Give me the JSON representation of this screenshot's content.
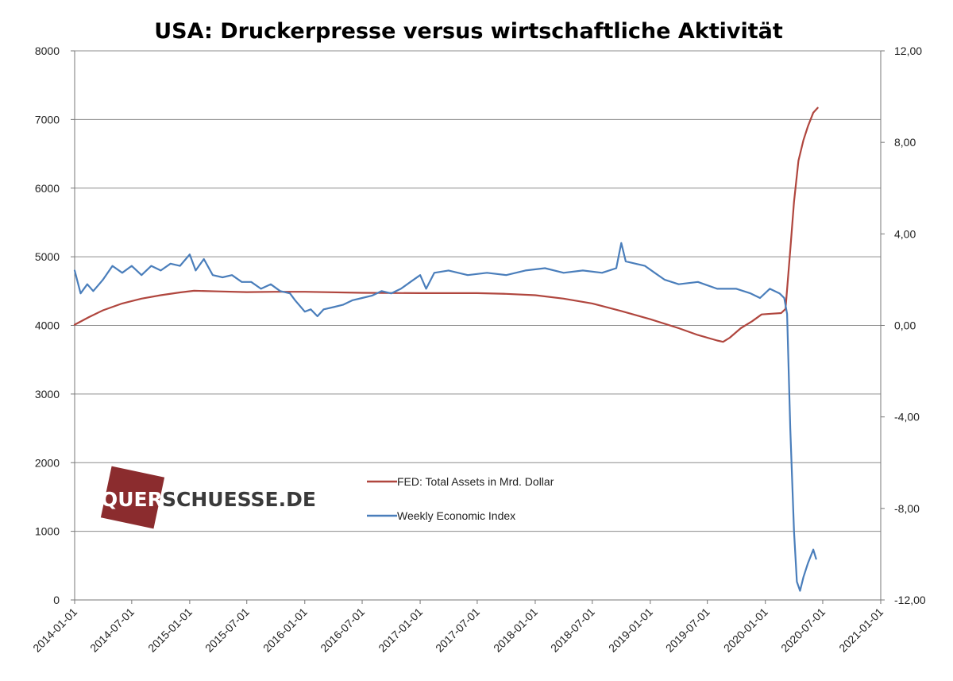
{
  "chart_data": {
    "type": "line",
    "title": "USA: Druckerpresse  versus  wirtschaftliche  Aktivität",
    "x_ticks": [
      "2014-01-01",
      "2014-07-01",
      "2015-01-01",
      "2015-07-01",
      "2016-01-01",
      "2016-07-01",
      "2017-01-01",
      "2017-07-01",
      "2018-01-01",
      "2018-07-01",
      "2019-01-01",
      "2019-07-01",
      "2020-01-01",
      "2020-07-01",
      "2021-01-01"
    ],
    "y_left": {
      "min": 0,
      "max": 8000,
      "ticks": [
        "0",
        "1000",
        "2000",
        "3000",
        "4000",
        "5000",
        "6000",
        "7000",
        "8000"
      ]
    },
    "y_right": {
      "min": -12,
      "max": 12,
      "ticks": [
        "-12,00",
        "-8,00",
        "-4,00",
        "0,00",
        "4,00",
        "8,00",
        "12,00"
      ]
    },
    "grid": true,
    "legend_position": "center",
    "series": [
      {
        "name": "FED: Total Assets in Mrd. Dollar",
        "axis": "left",
        "color": "#b0463e",
        "points": [
          [
            "2014-01-01",
            4010
          ],
          [
            "2014-02-15",
            4120
          ],
          [
            "2014-04-01",
            4220
          ],
          [
            "2014-06-01",
            4320
          ],
          [
            "2014-08-01",
            4390
          ],
          [
            "2014-10-01",
            4440
          ],
          [
            "2014-12-01",
            4480
          ],
          [
            "2015-01-15",
            4505
          ],
          [
            "2015-04-01",
            4495
          ],
          [
            "2015-07-01",
            4485
          ],
          [
            "2015-10-01",
            4490
          ],
          [
            "2016-01-01",
            4490
          ],
          [
            "2016-07-01",
            4475
          ],
          [
            "2017-01-01",
            4470
          ],
          [
            "2017-07-01",
            4470
          ],
          [
            "2017-10-01",
            4460
          ],
          [
            "2018-01-01",
            4440
          ],
          [
            "2018-04-01",
            4390
          ],
          [
            "2018-07-01",
            4320
          ],
          [
            "2018-10-01",
            4210
          ],
          [
            "2019-01-01",
            4090
          ],
          [
            "2019-04-01",
            3960
          ],
          [
            "2019-06-01",
            3860
          ],
          [
            "2019-08-01",
            3780
          ],
          [
            "2019-08-20",
            3760
          ],
          [
            "2019-09-10",
            3820
          ],
          [
            "2019-10-15",
            3960
          ],
          [
            "2019-11-20",
            4060
          ],
          [
            "2019-12-20",
            4160
          ],
          [
            "2020-01-20",
            4170
          ],
          [
            "2020-02-20",
            4180
          ],
          [
            "2020-03-05",
            4240
          ],
          [
            "2020-03-20",
            5100
          ],
          [
            "2020-04-01",
            5800
          ],
          [
            "2020-04-15",
            6400
          ],
          [
            "2020-05-01",
            6700
          ],
          [
            "2020-05-15",
            6900
          ],
          [
            "2020-06-01",
            7100
          ],
          [
            "2020-06-15",
            7170
          ]
        ]
      },
      {
        "name": "Weekly Economic Index",
        "axis": "right",
        "color": "#4a7ebb",
        "points": [
          [
            "2014-01-01",
            2.4
          ],
          [
            "2014-01-20",
            1.4
          ],
          [
            "2014-02-10",
            1.8
          ],
          [
            "2014-03-01",
            1.5
          ],
          [
            "2014-04-01",
            2.0
          ],
          [
            "2014-05-01",
            2.6
          ],
          [
            "2014-06-01",
            2.3
          ],
          [
            "2014-07-01",
            2.6
          ],
          [
            "2014-08-01",
            2.2
          ],
          [
            "2014-09-01",
            2.6
          ],
          [
            "2014-10-01",
            2.4
          ],
          [
            "2014-11-01",
            2.7
          ],
          [
            "2014-12-01",
            2.6
          ],
          [
            "2015-01-01",
            3.1
          ],
          [
            "2015-01-20",
            2.4
          ],
          [
            "2015-02-15",
            2.9
          ],
          [
            "2015-03-15",
            2.2
          ],
          [
            "2015-04-15",
            2.1
          ],
          [
            "2015-05-15",
            2.2
          ],
          [
            "2015-06-15",
            1.9
          ],
          [
            "2015-07-15",
            1.9
          ],
          [
            "2015-08-15",
            1.6
          ],
          [
            "2015-09-15",
            1.8
          ],
          [
            "2015-10-15",
            1.5
          ],
          [
            "2015-11-15",
            1.4
          ],
          [
            "2015-12-01",
            1.1
          ],
          [
            "2016-01-01",
            0.6
          ],
          [
            "2016-01-20",
            0.7
          ],
          [
            "2016-02-10",
            0.4
          ],
          [
            "2016-03-01",
            0.7
          ],
          [
            "2016-04-01",
            0.8
          ],
          [
            "2016-05-01",
            0.9
          ],
          [
            "2016-06-01",
            1.1
          ],
          [
            "2016-07-01",
            1.2
          ],
          [
            "2016-08-01",
            1.3
          ],
          [
            "2016-09-01",
            1.5
          ],
          [
            "2016-10-01",
            1.4
          ],
          [
            "2016-11-01",
            1.6
          ],
          [
            "2016-12-01",
            1.9
          ],
          [
            "2017-01-01",
            2.2
          ],
          [
            "2017-01-20",
            1.6
          ],
          [
            "2017-02-15",
            2.3
          ],
          [
            "2017-04-01",
            2.4
          ],
          [
            "2017-06-01",
            2.2
          ],
          [
            "2017-08-01",
            2.3
          ],
          [
            "2017-10-01",
            2.2
          ],
          [
            "2017-12-01",
            2.4
          ],
          [
            "2018-02-01",
            2.5
          ],
          [
            "2018-04-01",
            2.3
          ],
          [
            "2018-06-01",
            2.4
          ],
          [
            "2018-08-01",
            2.3
          ],
          [
            "2018-09-15",
            2.5
          ],
          [
            "2018-10-01",
            3.6
          ],
          [
            "2018-10-15",
            2.8
          ],
          [
            "2018-11-15",
            2.7
          ],
          [
            "2018-12-15",
            2.6
          ],
          [
            "2019-01-15",
            2.3
          ],
          [
            "2019-02-15",
            2.0
          ],
          [
            "2019-04-01",
            1.8
          ],
          [
            "2019-06-01",
            1.9
          ],
          [
            "2019-08-01",
            1.6
          ],
          [
            "2019-10-01",
            1.6
          ],
          [
            "2019-11-15",
            1.4
          ],
          [
            "2019-12-15",
            1.2
          ],
          [
            "2020-01-15",
            1.6
          ],
          [
            "2020-02-15",
            1.4
          ],
          [
            "2020-03-01",
            1.2
          ],
          [
            "2020-03-10",
            0.5
          ],
          [
            "2020-03-20",
            -4.5
          ],
          [
            "2020-04-01",
            -9.0
          ],
          [
            "2020-04-10",
            -11.2
          ],
          [
            "2020-04-20",
            -11.6
          ],
          [
            "2020-05-01",
            -11.0
          ],
          [
            "2020-05-15",
            -10.4
          ],
          [
            "2020-06-01",
            -9.8
          ],
          [
            "2020-06-10",
            -10.2
          ]
        ]
      }
    ]
  },
  "watermark": {
    "text_left": "QUER",
    "text_right": "SCHUESSE.DE",
    "color_block": "#8b2c2e"
  }
}
